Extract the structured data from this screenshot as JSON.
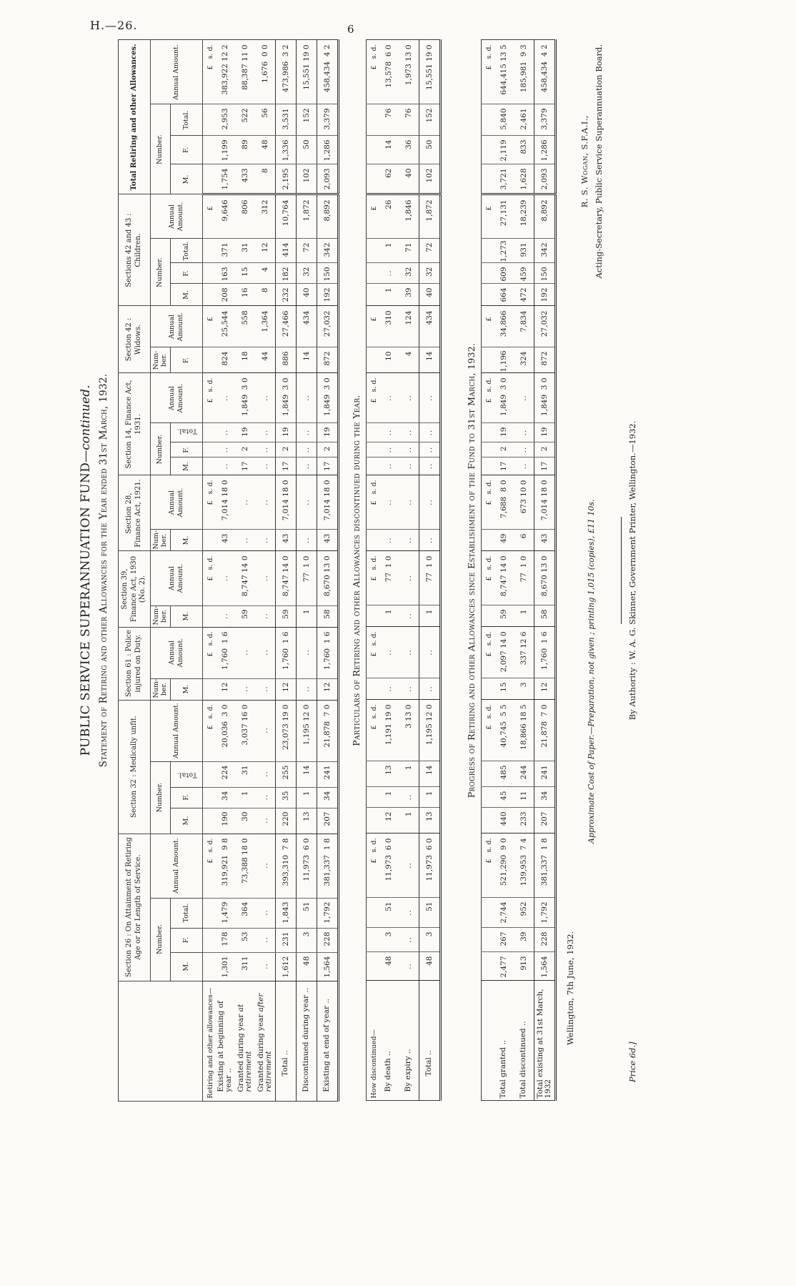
{
  "page": {
    "doc_no": "H.—26.",
    "page_no": "6"
  },
  "titles": {
    "main": "PUBLIC SERVICE SUPERANNUATION FUND",
    "main_suffix": "—continued.",
    "statement": "Statement of Retiring and other Allowances for the Year ended 31st March, 1932."
  },
  "header": {
    "number": "Number.",
    "number_nb": "Num-\nber.",
    "amount": "Annual Amount.",
    "m": "M.",
    "f": "F.",
    "total": "Total.",
    "groups": [
      "Section 26 : On Attainment of Retiring Age or for Length of Service.",
      "Section 32 : Medically unfit.",
      "Section 61 : Police injured on Duty.",
      "Section 39, Finance Act, 1930 (No. 2).",
      "Section 28, Finance Act, 1921.",
      "Section 14, Finance Act, 1931.",
      "Section 42 : Widows.",
      "Sections 42 and 43 : Children.",
      "Total Retiring and other Allowances."
    ]
  },
  "t1": {
    "rows": [
      {
        "l": "Retiring and other allowances—",
        "ind": 0,
        "cells": [
          "",
          "",
          "",
          "£   s. d.",
          "",
          "",
          "",
          "£   s. d.",
          "",
          "£   s. d.",
          "",
          "£   s. d.",
          "",
          "£   s. d.",
          "",
          "",
          "",
          "£   s. d.",
          "",
          "£   ",
          "",
          "",
          "",
          "£   ",
          "",
          "",
          "",
          "£   s. d."
        ]
      },
      {
        "l": "Existing at beginning of year ..",
        "ind": 1,
        "cells": [
          "1,301",
          "178",
          "1,479",
          "319,921  9 8",
          "190",
          "34",
          "224",
          "20,036  3 0",
          "12",
          "1,760  1 6",
          "..",
          "..",
          "43",
          "7,014 18 0",
          "..",
          "..",
          "..",
          "..",
          "824",
          "25,544",
          "208",
          "163",
          "371",
          "9,646",
          "1,754",
          "1,199",
          "2,953",
          "383,922 12 2"
        ]
      },
      {
        "l": "Granted during year ",
        "i": "at retirement",
        "ind": 1,
        "cells": [
          "311",
          "53",
          "364",
          "73,388 18 0",
          "30",
          "1",
          "31",
          "3,037 16 0",
          "..",
          "..",
          "59",
          "8,747 14 0",
          "..",
          "..",
          "17",
          "2",
          "19",
          "1,849  3 0",
          "18",
          "558",
          "16",
          "15",
          "31",
          "806",
          "433",
          "89",
          "522",
          "88,387 11 0"
        ]
      },
      {
        "l": "Granted during year ",
        "i": "after retirement",
        "ind": 1,
        "cells": [
          "..",
          "..",
          "..",
          "..",
          "..",
          "..",
          "..",
          "..",
          "..",
          "..",
          "..",
          "..",
          "..",
          "..",
          "..",
          "..",
          "..",
          "..",
          "44",
          "1,364",
          "8",
          "4",
          "12",
          "312",
          "8",
          "48",
          "56",
          "1,676  0 0"
        ]
      },
      {
        "l": "Total ..",
        "ind": 3,
        "cells": [
          "1,612",
          "231",
          "1,843",
          "393,310  7 8",
          "220",
          "35",
          "255",
          "23,073 19 0",
          "12",
          "1,760  1 6",
          "59",
          "8,747 14 0",
          "43",
          "7,014 18 0",
          "17",
          "2",
          "19",
          "1,849  3 0",
          "886",
          "27,466",
          "232",
          "182",
          "414",
          "10,764",
          "2,195",
          "1,336",
          "3,531",
          "473,986  3 2"
        ]
      },
      {
        "l": "Discontinued during year ..",
        "ind": 1,
        "cells": [
          "48",
          "3",
          "51",
          "11,973  6 0",
          "13",
          "1",
          "14",
          "1,195 12 0",
          "..",
          "..",
          "1",
          "77  1 0",
          "..",
          "..",
          "..",
          "..",
          "..",
          "..",
          "14",
          "434",
          "40",
          "32",
          "72",
          "1,872",
          "102",
          "50",
          "152",
          "15,551 19 0"
        ]
      },
      {
        "l": "Existing at end of year ..",
        "ind": 1,
        "cells": [
          "1,564",
          "228",
          "1,792",
          "381,337  1 8",
          "207",
          "34",
          "241",
          "21,878  7 0",
          "12",
          "1,760  1 6",
          "58",
          "8,670 13 0",
          "43",
          "7,014 18 0",
          "17",
          "2",
          "19",
          "1,849  3 0",
          "872",
          "27,032",
          "192",
          "150",
          "342",
          "8,892",
          "2,093",
          "1,286",
          "3,379",
          "458,434  4 2"
        ]
      }
    ]
  },
  "t2": {
    "title": "Particulars of Retiring and other Allowances discontinued during the Year.",
    "rows": [
      {
        "l": "How discontinued—",
        "ind": 0,
        "cells": [
          "",
          "",
          "",
          "£   s. d.",
          "",
          "",
          "",
          "£   s. d.",
          "",
          "£   s. d.",
          "",
          "£   s. d.",
          "",
          "£   s. d.",
          "",
          "",
          "",
          "£   s. d.",
          "",
          "£   ",
          "",
          "",
          "",
          "£   ",
          "",
          "",
          "",
          "£   s. d."
        ]
      },
      {
        "l": "By death ..",
        "ind": 1,
        "cells": [
          "48",
          "3",
          "51",
          "11,973  6 0",
          "12",
          "1",
          "13",
          "1,191 19 0",
          "..",
          "..",
          "1",
          "77  1 0",
          "..",
          "..",
          "..",
          "..",
          "..",
          "..",
          "10",
          "310",
          "1",
          "..",
          "1",
          "26",
          "62",
          "14",
          "76",
          "13,578  6 0"
        ]
      },
      {
        "l": "By expiry ..",
        "ind": 1,
        "cells": [
          "..",
          "..",
          "..",
          "..",
          "1",
          "..",
          "1",
          "3 13 0",
          "..",
          "..",
          "..",
          "..",
          "..",
          "..",
          "..",
          "..",
          "..",
          "..",
          "4",
          "124",
          "39",
          "32",
          "71",
          "1,846",
          "40",
          "36",
          "76",
          "1,973 13 0"
        ]
      },
      {
        "l": "Total ..",
        "ind": 3,
        "cells": [
          "48",
          "3",
          "51",
          "11,973  6 0",
          "13",
          "1",
          "14",
          "1,195 12 0",
          "..",
          "..",
          "1",
          "77  1 0",
          "..",
          "..",
          "..",
          "..",
          "..",
          "..",
          "14",
          "434",
          "40",
          "32",
          "72",
          "1,872",
          "102",
          "50",
          "152",
          "15,551 19 0"
        ]
      }
    ]
  },
  "t3": {
    "title": "Progress of Retiring and other Allowances since Establishment of the Fund to 31st March, 1932.",
    "rows": [
      {
        "l": "",
        "ind": 0,
        "cells": [
          "",
          "",
          "",
          "£   s. d.",
          "",
          "",
          "",
          "£   s. d.",
          "",
          "£   s. d.",
          "",
          "£   s. d.",
          "",
          "£   s. d.",
          "",
          "",
          "",
          "£   s. d.",
          "",
          "£   ",
          "",
          "",
          "",
          "£   ",
          "",
          "",
          "",
          "£   s. d."
        ]
      },
      {
        "l": "Total granted ..",
        "ind": 0,
        "cells": [
          "2,477",
          "267",
          "2,744",
          "521,290  9 0",
          "440",
          "45",
          "485",
          "40,745  5 5",
          "15",
          "2,097 14 0",
          "59",
          "8,747 14 0",
          "49",
          "7,688  8 0",
          "17",
          "2",
          "19",
          "1,849  3 0",
          "1,196",
          "34,866",
          "664",
          "609",
          "1,273",
          "27,131",
          "3,721",
          "2,119",
          "5,840",
          "644,415 13 5"
        ]
      },
      {
        "l": "Total discontinued ..",
        "ind": 0,
        "cells": [
          "913",
          "39",
          "952",
          "139,953  7 4",
          "233",
          "11",
          "244",
          "18,866 18 5",
          "3",
          "337 12 6",
          "1",
          "77  1 0",
          "6",
          "673 10 0",
          "..",
          "..",
          "..",
          "..",
          "324",
          "7,834",
          "472",
          "459",
          "931",
          "18,239",
          "1,628",
          "833",
          "2,461",
          "185,981  9 3"
        ]
      },
      {
        "l": "Total existing at 31st March, 1932",
        "ind": 0,
        "cells": [
          "1,564",
          "228",
          "1,792",
          "381,337  1 8",
          "207",
          "34",
          "241",
          "21,878  7 0",
          "12",
          "1,760  1 6",
          "58",
          "8,670 13 0",
          "43",
          "7,014 18 0",
          "17",
          "2",
          "19",
          "1,849  3 0",
          "872",
          "27,032",
          "192",
          "150",
          "342",
          "8,892",
          "2,093",
          "1,286",
          "3,379",
          "458,434  4 2"
        ]
      }
    ]
  },
  "footer": {
    "place_date": "Wellington, 7th June, 1932.",
    "cost_lead": "Approximate Cost of Paper.",
    "cost_rest": "—Preparation, not given ; printing 1,015 (copies), £11 10s.",
    "sign_name": "R. S. Wogan, S.F.A.I.,",
    "sign_role": "Acting-Secretary, Public Service Superannuation Board.",
    "authority": "By Authority : W. A. G. Skinner, Government Printer, Wellington.—1932.",
    "price": "Price 6d.]"
  }
}
